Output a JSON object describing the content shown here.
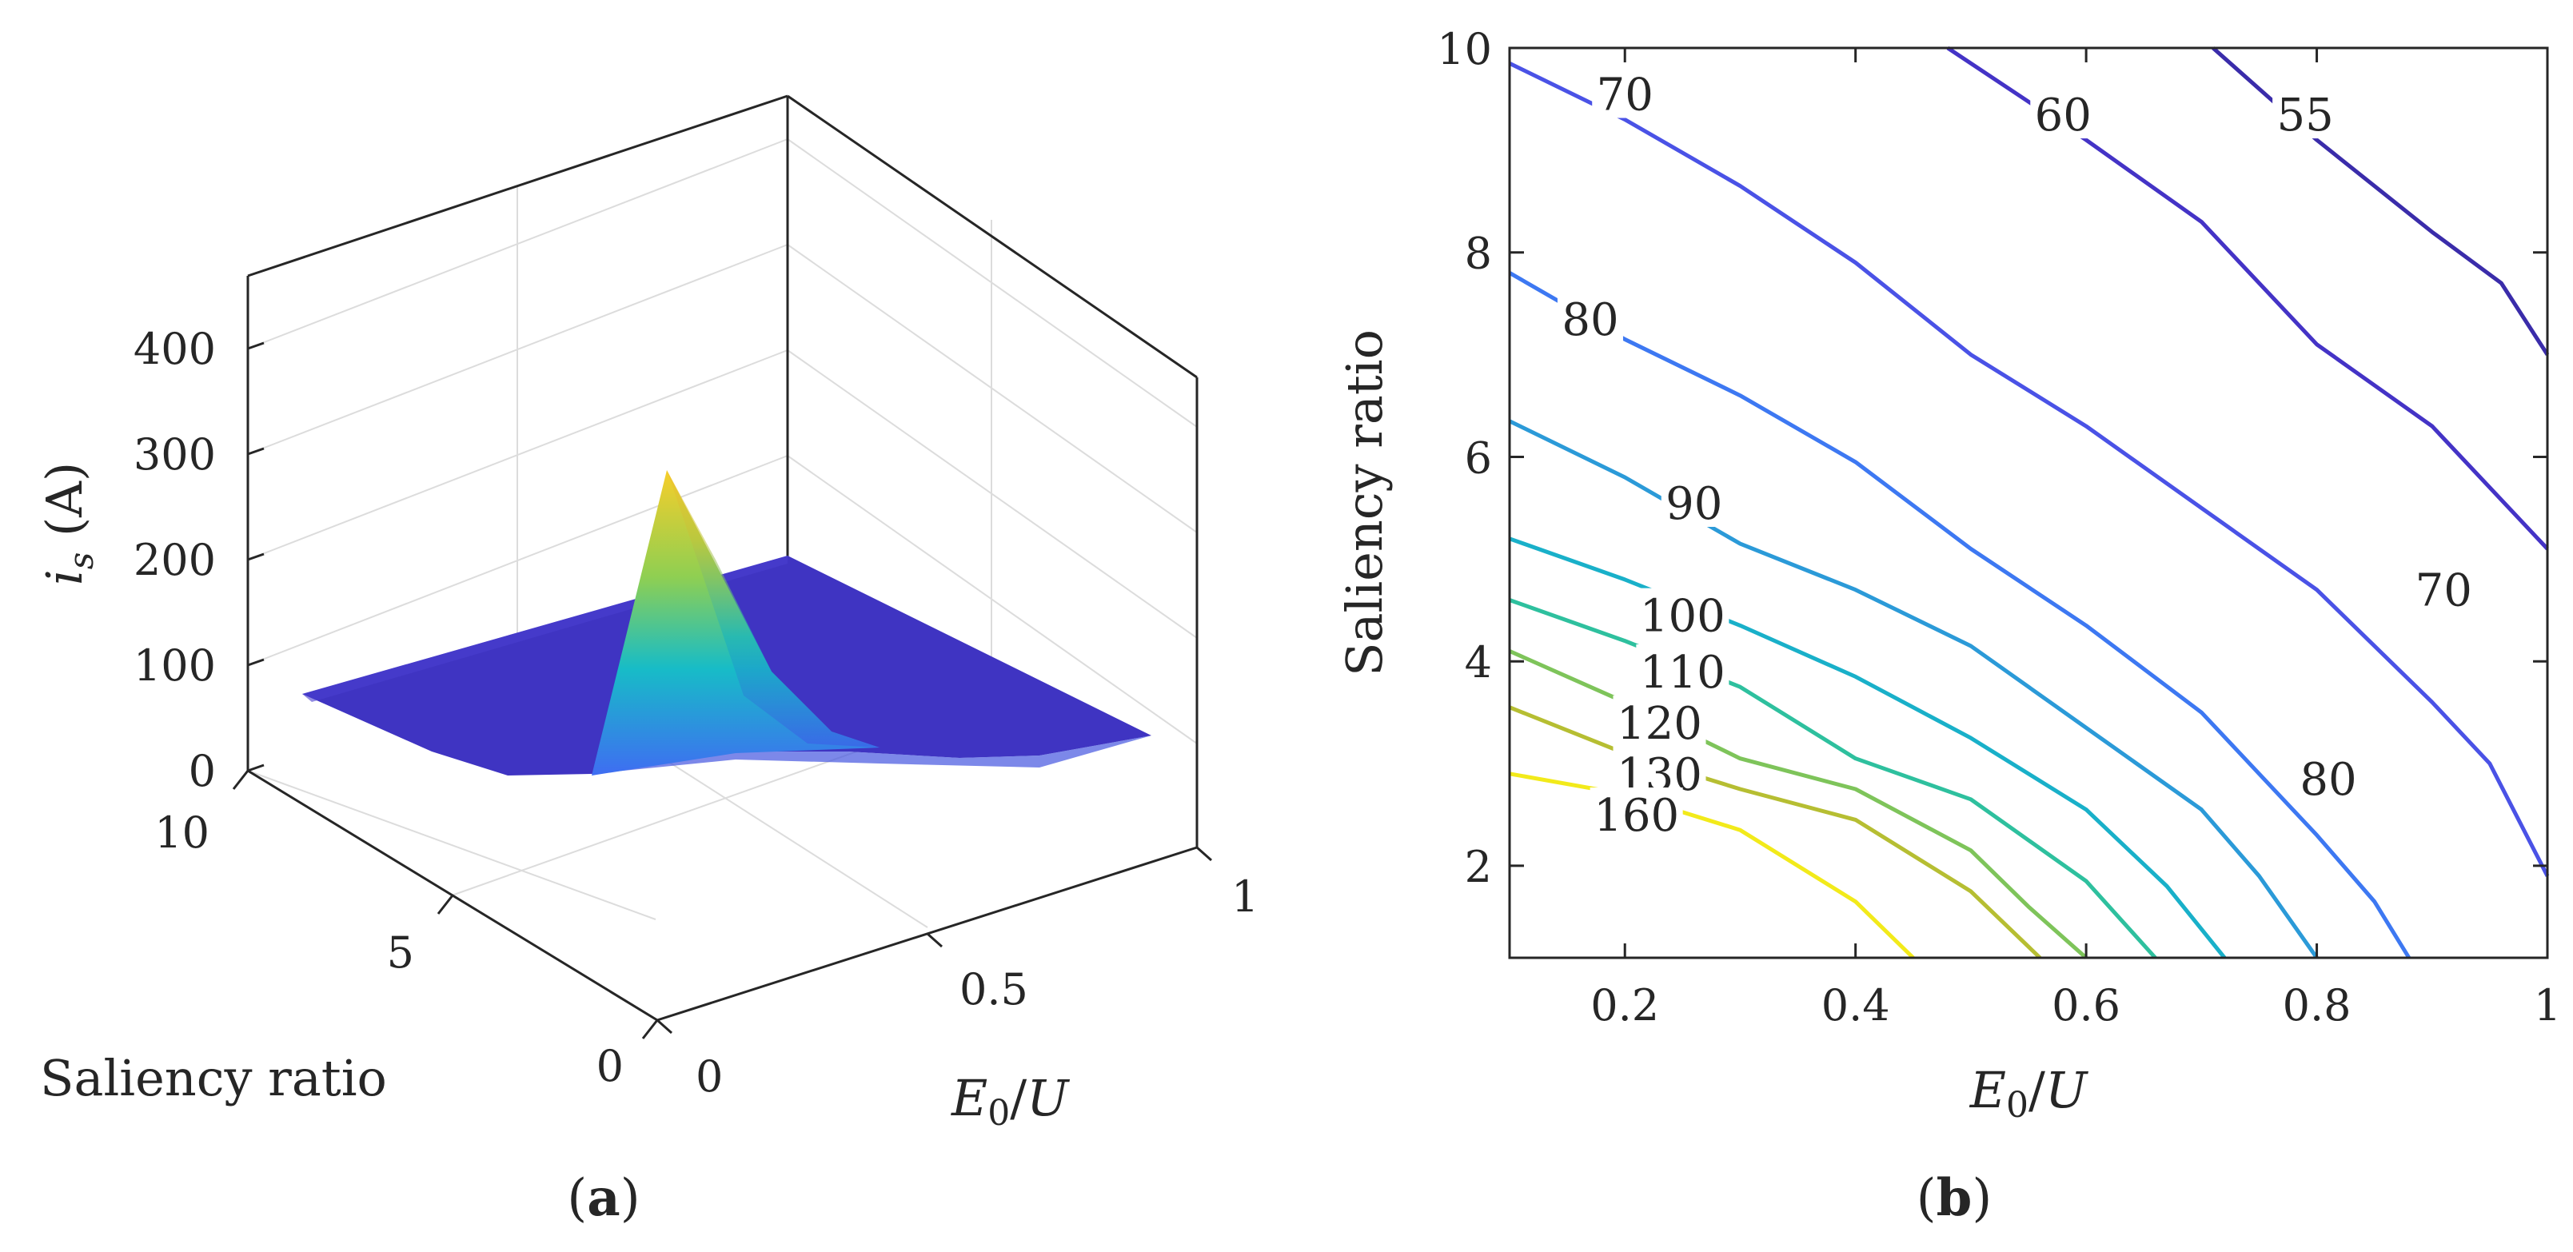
{
  "colors": {
    "c55": "#3a2caa",
    "c60": "#4433c6",
    "c70": "#4a52e6",
    "c80": "#3d78f2",
    "c90": "#2b9ad8",
    "c100": "#19b0c9",
    "c110": "#2ec09e",
    "c120": "#7ec45a",
    "c130": "#b6be32",
    "c160": "#f2ea1a",
    "surface_base": "#3f34c2",
    "axis": "#262626",
    "grid": "#dcdcdc"
  },
  "chart_data": [
    {
      "type": "surface",
      "panel_label": "(a)",
      "zlabel": "i_s (A)",
      "xlabel": "Saliency ratio",
      "ylabel": "E_0/U",
      "z_ticks": [
        "0",
        "100",
        "200",
        "300",
        "400"
      ],
      "x_ticks": [
        "0",
        "5",
        "10"
      ],
      "y_ticks": [
        "0",
        "0.5",
        "1"
      ],
      "xlim": [
        0,
        10
      ],
      "ylim": [
        0,
        1
      ],
      "zlim": [
        0,
        400
      ],
      "grid": true,
      "surface": {
        "baseline_value": 40,
        "peak": {
          "saliency_ratio": 1,
          "E0_U": 0.1,
          "i_s": 320
        }
      }
    },
    {
      "type": "contour",
      "panel_label": "(b)",
      "xlabel": "E_0/U",
      "ylabel": "Saliency ratio",
      "xlim": [
        0.1,
        1
      ],
      "ylim": [
        1.1,
        10
      ],
      "x_ticks": [
        "0.2",
        "0.4",
        "0.6",
        "0.8",
        "1"
      ],
      "y_ticks": [
        "2",
        "4",
        "6",
        "8",
        "10"
      ],
      "levels": [
        {
          "value": 55,
          "label": "55",
          "points": [
            [
              0.71,
              10
            ],
            [
              0.8,
              9.1
            ],
            [
              0.9,
              8.2
            ],
            [
              0.96,
              7.7
            ],
            [
              1.0,
              7.0
            ]
          ]
        },
        {
          "value": 60,
          "label": "60",
          "points": [
            [
              0.48,
              10
            ],
            [
              0.6,
              9.1
            ],
            [
              0.7,
              8.3
            ],
            [
              0.8,
              7.1
            ],
            [
              0.9,
              6.3
            ],
            [
              1.0,
              5.1
            ]
          ]
        },
        {
          "value": 70,
          "label": "70",
          "points": [
            [
              0.1,
              9.85
            ],
            [
              0.2,
              9.3
            ],
            [
              0.3,
              8.65
            ],
            [
              0.4,
              7.9
            ],
            [
              0.5,
              7.0
            ],
            [
              0.6,
              6.3
            ],
            [
              0.7,
              5.5
            ],
            [
              0.8,
              4.7
            ],
            [
              0.9,
              3.6
            ],
            [
              0.95,
              3.0
            ],
            [
              1.0,
              1.9
            ]
          ]
        },
        {
          "value": 80,
          "label": "80",
          "points": [
            [
              0.1,
              7.8
            ],
            [
              0.2,
              7.15
            ],
            [
              0.3,
              6.6
            ],
            [
              0.4,
              5.95
            ],
            [
              0.5,
              5.1
            ],
            [
              0.6,
              4.35
            ],
            [
              0.7,
              3.5
            ],
            [
              0.75,
              2.9
            ],
            [
              0.8,
              2.3
            ],
            [
              0.85,
              1.65
            ],
            [
              0.88,
              1.1
            ]
          ]
        },
        {
          "value": 90,
          "label": "90",
          "points": [
            [
              0.1,
              6.35
            ],
            [
              0.2,
              5.8
            ],
            [
              0.3,
              5.15
            ],
            [
              0.4,
              4.7
            ],
            [
              0.5,
              4.15
            ],
            [
              0.6,
              3.35
            ],
            [
              0.7,
              2.55
            ],
            [
              0.75,
              1.9
            ],
            [
              0.8,
              1.1
            ]
          ]
        },
        {
          "value": 100,
          "label": "100",
          "points": [
            [
              0.1,
              5.2
            ],
            [
              0.2,
              4.8
            ],
            [
              0.3,
              4.35
            ],
            [
              0.4,
              3.85
            ],
            [
              0.5,
              3.25
            ],
            [
              0.6,
              2.55
            ],
            [
              0.67,
              1.8
            ],
            [
              0.72,
              1.1
            ]
          ]
        },
        {
          "value": 110,
          "label": "110",
          "points": [
            [
              0.1,
              4.6
            ],
            [
              0.2,
              4.2
            ],
            [
              0.3,
              3.75
            ],
            [
              0.4,
              3.05
            ],
            [
              0.5,
              2.65
            ],
            [
              0.6,
              1.85
            ],
            [
              0.66,
              1.1
            ]
          ]
        },
        {
          "value": 120,
          "label": "120",
          "points": [
            [
              0.1,
              4.1
            ],
            [
              0.2,
              3.6
            ],
            [
              0.3,
              3.05
            ],
            [
              0.4,
              2.75
            ],
            [
              0.5,
              2.15
            ],
            [
              0.55,
              1.6
            ],
            [
              0.6,
              1.1
            ]
          ]
        },
        {
          "value": 130,
          "label": "130",
          "points": [
            [
              0.1,
              3.55
            ],
            [
              0.2,
              3.1
            ],
            [
              0.3,
              2.75
            ],
            [
              0.4,
              2.45
            ],
            [
              0.5,
              1.75
            ],
            [
              0.56,
              1.1
            ]
          ]
        },
        {
          "value": 160,
          "label": "160",
          "points": [
            [
              0.1,
              2.9
            ],
            [
              0.2,
              2.7
            ],
            [
              0.3,
              2.35
            ],
            [
              0.4,
              1.65
            ],
            [
              0.45,
              1.1
            ]
          ]
        }
      ],
      "inline_labels": [
        {
          "text": "70",
          "at": [
            0.2,
            9.55
          ]
        },
        {
          "text": "60",
          "at": [
            0.58,
            9.35
          ]
        },
        {
          "text": "55",
          "at": [
            0.79,
            9.35
          ]
        },
        {
          "text": "80",
          "at": [
            0.17,
            7.35
          ]
        },
        {
          "text": "90",
          "at": [
            0.26,
            5.55
          ]
        },
        {
          "text": "100",
          "at": [
            0.25,
            4.45
          ]
        },
        {
          "text": "110",
          "at": [
            0.25,
            3.9
          ]
        },
        {
          "text": "120",
          "at": [
            0.23,
            3.4
          ]
        },
        {
          "text": "130",
          "at": [
            0.23,
            2.9
          ]
        },
        {
          "text": "160",
          "at": [
            0.21,
            2.5
          ]
        },
        {
          "text": "70",
          "at": [
            0.91,
            4.7
          ]
        },
        {
          "text": "80",
          "at": [
            0.81,
            2.85
          ]
        }
      ]
    }
  ]
}
